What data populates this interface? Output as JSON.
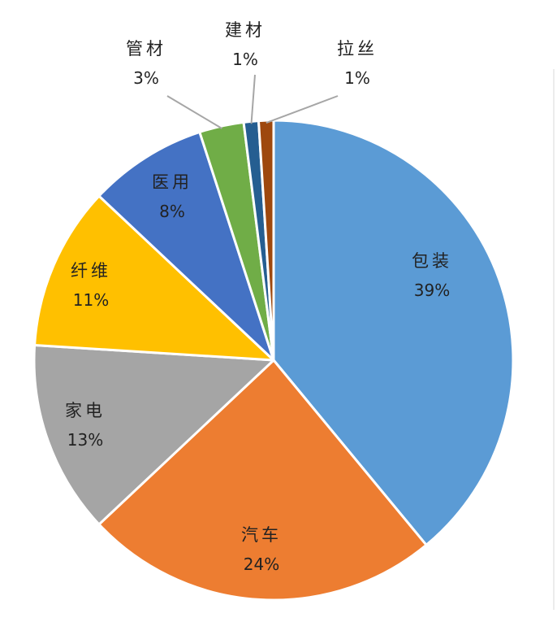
{
  "chart_data": {
    "type": "pie",
    "title": "",
    "start_angle_deg": 0,
    "direction": "clockwise",
    "slices": [
      {
        "label": "包装",
        "value": 39,
        "value_label": "39%",
        "color": "#5b9bd5"
      },
      {
        "label": "汽车",
        "value": 24,
        "value_label": "24%",
        "color": "#ed7d31"
      },
      {
        "label": "家电",
        "value": 13,
        "value_label": "13%",
        "color": "#a5a5a5"
      },
      {
        "label": "纤维",
        "value": 11,
        "value_label": "11%",
        "color": "#ffc000"
      },
      {
        "label": "医用",
        "value": 8,
        "value_label": "8%",
        "color": "#4472c4"
      },
      {
        "label": "管材",
        "value": 3,
        "value_label": "3%",
        "color": "#70ad47"
      },
      {
        "label": "建材",
        "value": 1,
        "value_label": "1%",
        "color": "#255e91"
      },
      {
        "label": "拉丝",
        "value": 1,
        "value_label": "1%",
        "color": "#9e480e"
      }
    ],
    "legend": "none",
    "label_style": "category name and percent on slice; leader lines for small slices"
  }
}
